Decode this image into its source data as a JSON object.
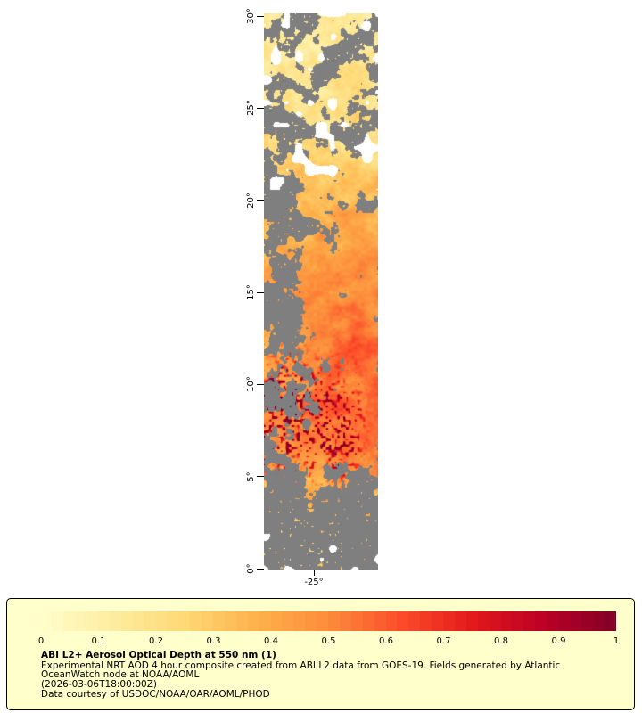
{
  "map": {
    "y_axis": {
      "tick_labels": [
        "30°",
        "25°",
        "20°",
        "15°",
        "10°",
        "5°",
        "0°"
      ]
    },
    "x_axis": {
      "tick_label": "-25°"
    },
    "nodata_color": "#7f7f7f",
    "render_profile": {
      "aod_by_lat": [
        [
          0,
          0.28
        ],
        [
          4,
          0.32
        ],
        [
          5.5,
          0.45
        ],
        [
          8,
          0.5
        ],
        [
          10,
          0.46
        ],
        [
          13,
          0.42
        ],
        [
          17,
          0.4
        ],
        [
          20,
          0.32
        ],
        [
          23,
          0.24
        ],
        [
          26,
          0.18
        ],
        [
          30,
          0.14
        ]
      ],
      "cloud_by_lat": [
        [
          0,
          0.9
        ],
        [
          3,
          0.86
        ],
        [
          4.5,
          0.6
        ],
        [
          6,
          0.38
        ],
        [
          9,
          0.3
        ],
        [
          13,
          0.26
        ],
        [
          17,
          0.26
        ],
        [
          20,
          0.38
        ],
        [
          23,
          0.46
        ],
        [
          26,
          0.5
        ],
        [
          30,
          0.46
        ]
      ],
      "cloud_left_boost_by_lat": [
        [
          0,
          0
        ],
        [
          5,
          0.05
        ],
        [
          8,
          0.2
        ],
        [
          11,
          0.3
        ],
        [
          14,
          0.38
        ],
        [
          18,
          0.32
        ],
        [
          21,
          0.22
        ],
        [
          24,
          0.08
        ],
        [
          30,
          0.06
        ]
      ]
    }
  },
  "colorbar": {
    "tick_labels": [
      "0",
      "0.1",
      "0.2",
      "0.3",
      "0.4",
      "0.5",
      "0.6",
      "0.7",
      "0.8",
      "0.9",
      "1"
    ],
    "gradient_stops": [
      "#ffffcc",
      "#ffeda0",
      "#fed976",
      "#feb24c",
      "#fd8d3c",
      "#fc4e2a",
      "#e31a1c",
      "#bd0026",
      "#800026"
    ],
    "range": [
      0,
      1
    ],
    "box_background": "#ffffcc"
  },
  "caption": {
    "title": "ABI L2+ Aerosol Optical Depth at 550 nm (1)",
    "description_line1": "Experimental NRT AOD 4 hour composite created from ABI L2 data from GOES-19. Fields generated by Atlantic",
    "description_line2": "OceanWatch node at NOAA/AOML",
    "timestamp": "(2026-03-06T18:00:00Z)",
    "credit": "Data courtesy of USDOC/NOAA/OAR/AOML/PHOD"
  }
}
